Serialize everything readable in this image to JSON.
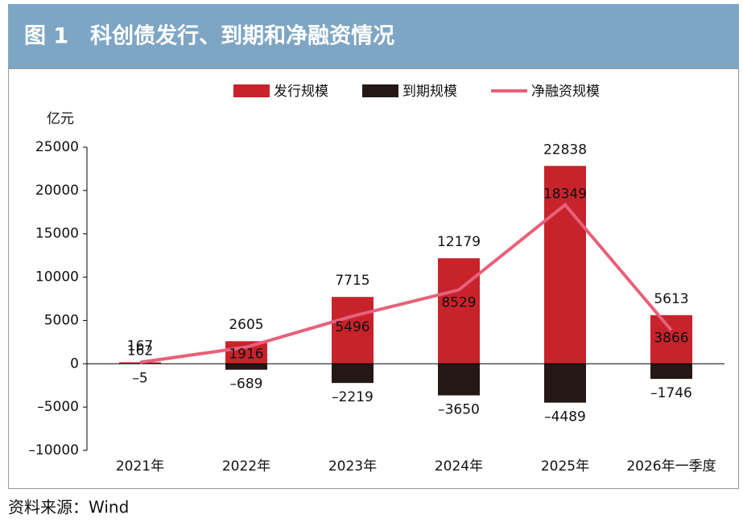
{
  "page_title": "图 1　科创债发行、到期和净融资情况",
  "source": "资料来源：Wind",
  "chart_data": {
    "type": "bar_line",
    "y_unit": "亿元",
    "categories": [
      "2021年",
      "2022年",
      "2023年",
      "2024年",
      "2025年",
      "2026年一季度"
    ],
    "series": [
      {
        "name": "发行规模",
        "color": "#c8232b",
        "kind": "bar",
        "values": [
          167,
          2605,
          7715,
          12179,
          22838,
          5613
        ]
      },
      {
        "name": "到期规模",
        "color": "#231815",
        "kind": "bar",
        "values": [
          -5,
          -689,
          -2219,
          -3650,
          -4489,
          -1746
        ],
        "value_labels": [
          "–5",
          "–689",
          "–2219",
          "–3650",
          "–4489",
          "–1746"
        ]
      },
      {
        "name": "净融资规模",
        "color": "#e8607a",
        "kind": "line",
        "values": [
          162,
          1916,
          5496,
          8529,
          18349,
          3866
        ]
      }
    ],
    "ylim": [
      -10000,
      25000
    ],
    "yticks": [
      {
        "value": -10000,
        "label": "–10000"
      },
      {
        "value": -5000,
        "label": "–5000"
      },
      0,
      5000,
      10000,
      15000,
      20000,
      25000
    ]
  }
}
